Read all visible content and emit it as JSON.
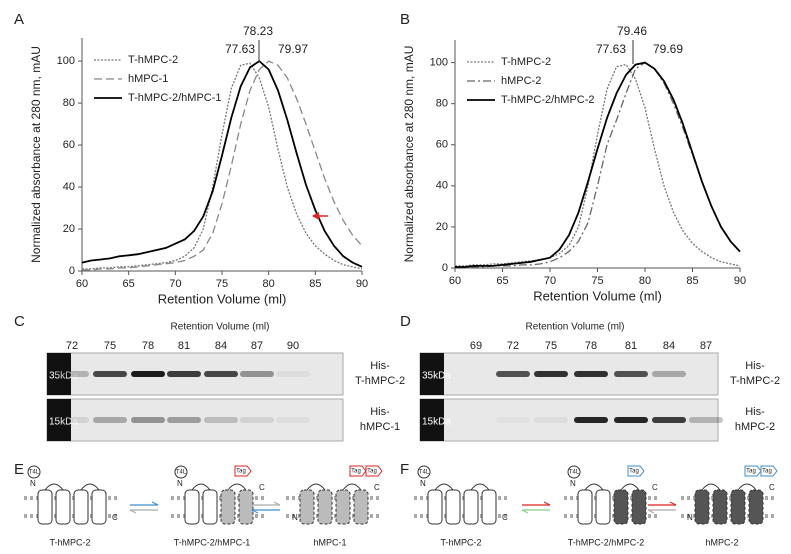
{
  "panel_labels": [
    "A",
    "B",
    "C",
    "D",
    "E",
    "F"
  ],
  "chart_data": [
    {
      "type": "line",
      "xlabel": "Retention Volume (ml)",
      "ylabel": "Normalized absorbance at 280 nm, mAU",
      "annotations": [
        "77.63",
        "78.23",
        "79.97"
      ],
      "x": [
        60,
        61,
        62,
        63,
        64,
        65,
        66,
        67,
        68,
        69,
        70,
        71,
        72,
        73,
        74,
        75,
        76,
        77,
        78,
        79,
        80,
        81,
        82,
        83,
        84,
        85,
        86,
        87,
        88,
        89,
        90
      ],
      "series": [
        {
          "name": "T-hMPC-2",
          "color": "#777777",
          "line_style": "dotted",
          "values": [
            1,
            1,
            1.5,
            1.5,
            2,
            2,
            2.5,
            3,
            3.5,
            4,
            5,
            7,
            11,
            20,
            40,
            65,
            87,
            98,
            99,
            92,
            78,
            58,
            40,
            27,
            18,
            12,
            8,
            5,
            3,
            2,
            1
          ]
        },
        {
          "name": "hMPC-1",
          "color": "#888888",
          "line_style": "dashed",
          "values": [
            0.5,
            0.5,
            1,
            1,
            1.5,
            1.5,
            2,
            2.5,
            3,
            3.5,
            4,
            5,
            7,
            10,
            18,
            32,
            50,
            70,
            86,
            96,
            100,
            98,
            92,
            82,
            70,
            57,
            44,
            33,
            24,
            17,
            12
          ]
        },
        {
          "name": "T-hMPC-2/hMPC-1",
          "color": "#000000",
          "line_style": "solid",
          "values": [
            4,
            5,
            5.5,
            6,
            7,
            7.5,
            8,
            9,
            10,
            11,
            13,
            15,
            19,
            26,
            38,
            55,
            73,
            88,
            97,
            100,
            96,
            86,
            72,
            56,
            41,
            29,
            19,
            12,
            7,
            4,
            2
          ]
        }
      ],
      "xlim": [
        60,
        90
      ],
      "xticks": [
        60,
        65,
        70,
        75,
        80,
        85,
        90
      ],
      "ylim": [
        0,
        111
      ],
      "yticks": [
        0,
        20,
        40,
        60,
        80,
        100
      ],
      "grid": false,
      "legend": "top-left"
    },
    {
      "type": "line",
      "xlabel": "Retention Volume (ml)",
      "ylabel": "Normalized absorbance at 280 nm, mAU",
      "annotations": [
        "77.63",
        "79.46",
        "79.69"
      ],
      "x": [
        60,
        61,
        62,
        63,
        64,
        65,
        66,
        67,
        68,
        69,
        70,
        71,
        72,
        73,
        74,
        75,
        76,
        77,
        78,
        79,
        80,
        81,
        82,
        83,
        84,
        85,
        86,
        87,
        88,
        89,
        90
      ],
      "series": [
        {
          "name": "T-hMPC-2",
          "color": "#777777",
          "line_style": "dotted",
          "values": [
            1,
            1,
            1.5,
            1.5,
            2,
            2,
            2.5,
            3,
            3.5,
            4,
            5,
            7,
            11,
            20,
            40,
            65,
            87,
            98,
            99,
            92,
            78,
            58,
            40,
            27,
            18,
            12,
            8,
            5,
            3,
            2,
            1
          ]
        },
        {
          "name": "hMPC-2",
          "color": "#666666",
          "line_style": "dashdot",
          "values": [
            0,
            0,
            0.5,
            0.5,
            1,
            1,
            1,
            1.5,
            1.5,
            2,
            3,
            5,
            8,
            13,
            22,
            40,
            60,
            72,
            85,
            97,
            100,
            97,
            90,
            80,
            68,
            55,
            42,
            30,
            20,
            13,
            8
          ]
        },
        {
          "name": "T-hMPC-2/hMPC-2",
          "color": "#000000",
          "line_style": "solid",
          "values": [
            0.5,
            0.5,
            1,
            1,
            1,
            1.5,
            2,
            2.5,
            3,
            4,
            5,
            9,
            16,
            27,
            42,
            58,
            73,
            85,
            94,
            99,
            100,
            97,
            91,
            82,
            70,
            56,
            42,
            30,
            20,
            13,
            8
          ]
        }
      ],
      "xlim": [
        60,
        90
      ],
      "xticks": [
        60,
        65,
        70,
        75,
        80,
        85,
        90
      ],
      "ylim": [
        0,
        111
      ],
      "yticks": [
        0,
        20,
        40,
        60,
        80,
        100
      ],
      "grid": false,
      "legend": "top-left"
    }
  ],
  "gels": [
    {
      "header": "Retention Volume  (ml)",
      "lanes": [
        72,
        75,
        78,
        81,
        84,
        87,
        90
      ],
      "markers": [
        "35kDa",
        "15kDa"
      ],
      "proteins": [
        [
          "His-",
          "T-hMPC-2"
        ],
        [
          "His-",
          "hMPC-1"
        ]
      ]
    },
    {
      "header": "Retention Volume  (ml)",
      "lanes": [
        69,
        72,
        75,
        78,
        81,
        84,
        87
      ],
      "markers": [
        "35kDa",
        "15kDa"
      ],
      "proteins": [
        [
          "His-",
          "T-hMPC-2"
        ],
        [
          "His-",
          "hMPC-2"
        ]
      ]
    }
  ],
  "diagrams": [
    {
      "labels": [
        "T-hMPC-2",
        "T-hMPC-2/hMPC-1",
        "hMPC-1"
      ]
    },
    {
      "labels": [
        "T-hMPC-2",
        "T-hMPC-2/hMPC-2",
        "hMPC-2"
      ]
    }
  ],
  "diagram_texts": {
    "t4l": "T4L",
    "n": "N",
    "c": "C",
    "tag": "Tag"
  }
}
